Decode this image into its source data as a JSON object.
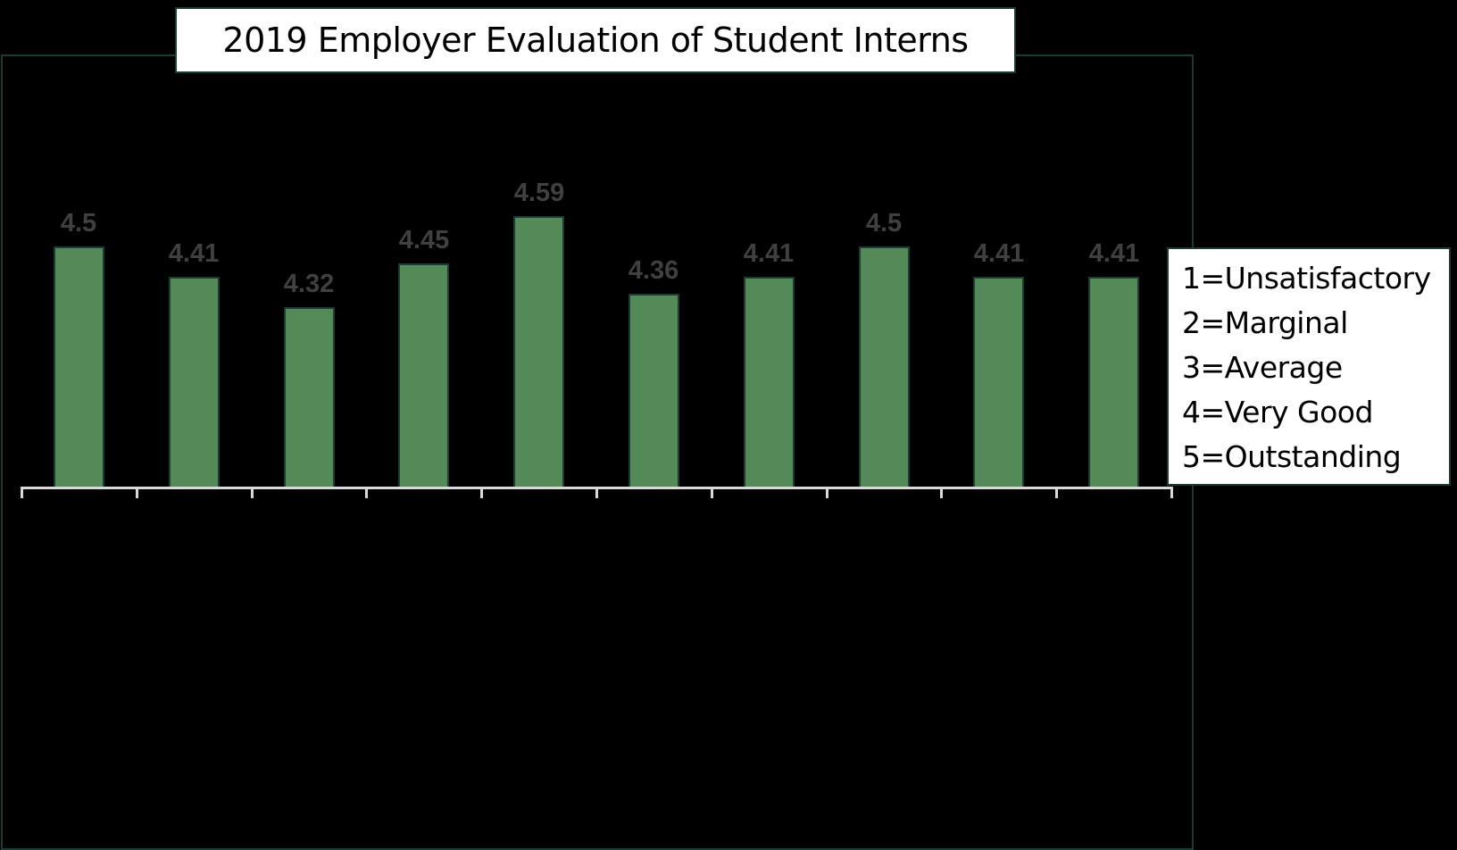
{
  "chart_data": {
    "type": "bar",
    "title": "2019 Employer Evaluation of Student Interns",
    "categories": [
      "",
      "",
      "",
      "",
      "",
      "",
      "",
      "",
      "",
      ""
    ],
    "values": [
      4.5,
      4.41,
      4.32,
      4.45,
      4.59,
      4.36,
      4.41,
      4.5,
      4.41,
      4.41
    ],
    "data_labels": [
      "4.5",
      "4.41",
      "4.32",
      "4.45",
      "4.59",
      "4.36",
      "4.41",
      "4.5",
      "4.41",
      "4.41"
    ],
    "xlabel": "",
    "ylabel": "",
    "ylim": [
      3.785,
      5
    ],
    "grid": false,
    "legend_position": "right",
    "bar_color": "#548a57",
    "annotation_box": [
      "1=Unsatisfactory",
      "2=Marginal",
      "3=Average",
      "4=Very Good",
      "5=Outstanding"
    ]
  },
  "title": "2019 Employer Evaluation of Student Interns",
  "legend": {
    "items": [
      "1=Unsatisfactory",
      "2=Marginal",
      "3=Average",
      "4=Very Good",
      "5=Outstanding"
    ]
  }
}
